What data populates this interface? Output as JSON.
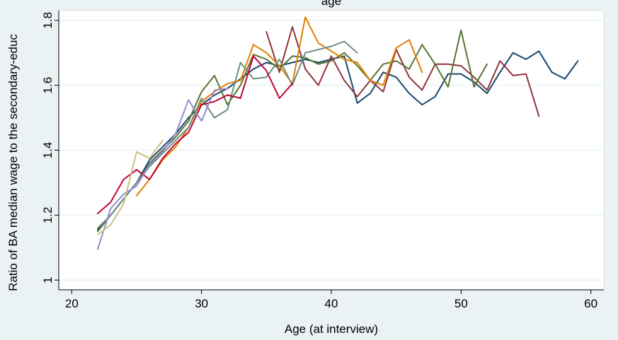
{
  "chart_data": {
    "type": "line",
    "title": "age",
    "xlabel": "Age (at interview)",
    "ylabel": "Ratio of BA median wage to the secondary-educ",
    "xlim": [
      19,
      61
    ],
    "ylim": [
      0.97,
      1.83
    ],
    "x_ticks": [
      20,
      30,
      40,
      50,
      60
    ],
    "y_ticks": [
      1,
      1.2,
      1.4,
      1.6,
      1.8
    ],
    "grid": true,
    "legend": "none",
    "series": [
      {
        "color": "#1a476f",
        "points": [
          [
            22,
            1.155
          ],
          [
            23,
            1.2
          ],
          [
            24,
            1.25
          ],
          [
            25,
            1.3
          ],
          [
            26,
            1.37
          ],
          [
            27,
            1.41
          ],
          [
            28,
            1.45
          ],
          [
            29,
            1.5
          ],
          [
            30,
            1.54
          ],
          [
            31,
            1.57
          ],
          [
            32,
            1.59
          ],
          [
            33,
            1.62
          ],
          [
            34,
            1.65
          ],
          [
            35,
            1.67
          ],
          [
            36,
            1.66
          ],
          [
            37,
            1.67
          ],
          [
            38,
            1.68
          ],
          [
            39,
            1.67
          ],
          [
            40,
            1.68
          ],
          [
            41,
            1.69
          ],
          [
            42,
            1.545
          ],
          [
            43,
            1.575
          ],
          [
            44,
            1.64
          ],
          [
            45,
            1.625
          ],
          [
            46,
            1.575
          ],
          [
            47,
            1.54
          ],
          [
            48,
            1.565
          ],
          [
            49,
            1.635
          ],
          [
            50,
            1.635
          ],
          [
            51,
            1.61
          ],
          [
            52,
            1.575
          ],
          [
            53,
            1.64
          ],
          [
            54,
            1.7
          ],
          [
            55,
            1.68
          ],
          [
            56,
            1.705
          ],
          [
            57,
            1.64
          ],
          [
            58,
            1.62
          ],
          [
            59,
            1.675
          ]
        ]
      },
      {
        "color": "#90353b",
        "points": [
          [
            35,
            1.765
          ],
          [
            36,
            1.64
          ],
          [
            37,
            1.78
          ],
          [
            38,
            1.65
          ],
          [
            39,
            1.6
          ],
          [
            40,
            1.69
          ],
          [
            41,
            1.615
          ],
          [
            42,
            1.565
          ],
          [
            43,
            1.615
          ],
          [
            44,
            1.58
          ],
          [
            45,
            1.71
          ],
          [
            46,
            1.625
          ],
          [
            47,
            1.585
          ],
          [
            48,
            1.665
          ],
          [
            49,
            1.665
          ],
          [
            50,
            1.66
          ],
          [
            51,
            1.625
          ],
          [
            52,
            1.585
          ],
          [
            53,
            1.675
          ],
          [
            54,
            1.63
          ],
          [
            55,
            1.635
          ],
          [
            56,
            1.505
          ]
        ]
      },
      {
        "color": "#55752f",
        "points": [
          [
            22,
            1.15
          ],
          [
            23,
            1.2
          ],
          [
            24,
            1.25
          ],
          [
            25,
            1.3
          ],
          [
            26,
            1.36
          ],
          [
            27,
            1.4
          ],
          [
            28,
            1.44
          ],
          [
            29,
            1.49
          ],
          [
            30,
            1.58
          ],
          [
            31,
            1.63
          ],
          [
            32,
            1.54
          ],
          [
            33,
            1.6
          ],
          [
            34,
            1.695
          ],
          [
            35,
            1.68
          ],
          [
            36,
            1.65
          ],
          [
            37,
            1.69
          ],
          [
            38,
            1.685
          ],
          [
            39,
            1.665
          ],
          [
            40,
            1.675
          ],
          [
            41,
            1.7
          ],
          [
            42,
            1.66
          ],
          [
            43,
            1.615
          ],
          [
            44,
            1.665
          ],
          [
            45,
            1.675
          ],
          [
            46,
            1.65
          ],
          [
            47,
            1.725
          ],
          [
            48,
            1.665
          ],
          [
            49,
            1.595
          ],
          [
            50,
            1.77
          ],
          [
            51,
            1.595
          ],
          [
            52,
            1.665
          ]
        ]
      },
      {
        "color": "#e37e00",
        "points": [
          [
            25,
            1.26
          ],
          [
            26,
            1.31
          ],
          [
            27,
            1.37
          ],
          [
            28,
            1.41
          ],
          [
            29,
            1.47
          ],
          [
            30,
            1.55
          ],
          [
            31,
            1.58
          ],
          [
            32,
            1.605
          ],
          [
            33,
            1.615
          ],
          [
            34,
            1.725
          ],
          [
            35,
            1.7
          ],
          [
            36,
            1.66
          ],
          [
            37,
            1.605
          ],
          [
            38,
            1.81
          ],
          [
            39,
            1.73
          ],
          [
            40,
            1.705
          ],
          [
            41,
            1.68
          ],
          [
            42,
            1.67
          ],
          [
            43,
            1.615
          ],
          [
            44,
            1.6
          ],
          [
            45,
            1.715
          ],
          [
            46,
            1.74
          ],
          [
            47,
            1.64
          ]
        ]
      },
      {
        "color": "#6e8e84",
        "points": [
          [
            22,
            1.16
          ],
          [
            23,
            1.2
          ],
          [
            24,
            1.25
          ],
          [
            25,
            1.3
          ],
          [
            26,
            1.35
          ],
          [
            27,
            1.39
          ],
          [
            28,
            1.43
          ],
          [
            29,
            1.47
          ],
          [
            30,
            1.56
          ],
          [
            31,
            1.5
          ],
          [
            32,
            1.525
          ],
          [
            33,
            1.67
          ],
          [
            34,
            1.62
          ],
          [
            35,
            1.625
          ],
          [
            36,
            1.68
          ],
          [
            37,
            1.6
          ],
          [
            38,
            1.7
          ],
          [
            39,
            1.71
          ],
          [
            40,
            1.72
          ],
          [
            41,
            1.735
          ],
          [
            42,
            1.7
          ]
        ]
      },
      {
        "color": "#c10534",
        "points": [
          [
            22,
            1.205
          ],
          [
            23,
            1.24
          ],
          [
            24,
            1.31
          ],
          [
            25,
            1.34
          ],
          [
            26,
            1.31
          ],
          [
            27,
            1.375
          ],
          [
            28,
            1.42
          ],
          [
            29,
            1.455
          ],
          [
            30,
            1.54
          ],
          [
            31,
            1.55
          ],
          [
            32,
            1.57
          ],
          [
            33,
            1.56
          ],
          [
            34,
            1.69
          ],
          [
            35,
            1.645
          ],
          [
            36,
            1.56
          ],
          [
            37,
            1.605
          ]
        ]
      },
      {
        "color": "#938dd2",
        "points": [
          [
            22,
            1.095
          ],
          [
            23,
            1.22
          ],
          [
            24,
            1.265
          ],
          [
            25,
            1.29
          ],
          [
            26,
            1.355
          ],
          [
            27,
            1.395
          ],
          [
            28,
            1.45
          ],
          [
            29,
            1.555
          ],
          [
            30,
            1.49
          ],
          [
            31,
            1.585
          ],
          [
            32,
            1.59
          ]
        ]
      },
      {
        "color": "#cac27e",
        "points": [
          [
            22,
            1.14
          ],
          [
            23,
            1.17
          ],
          [
            24,
            1.235
          ],
          [
            25,
            1.395
          ],
          [
            26,
            1.375
          ],
          [
            27,
            1.43
          ]
        ]
      }
    ]
  }
}
